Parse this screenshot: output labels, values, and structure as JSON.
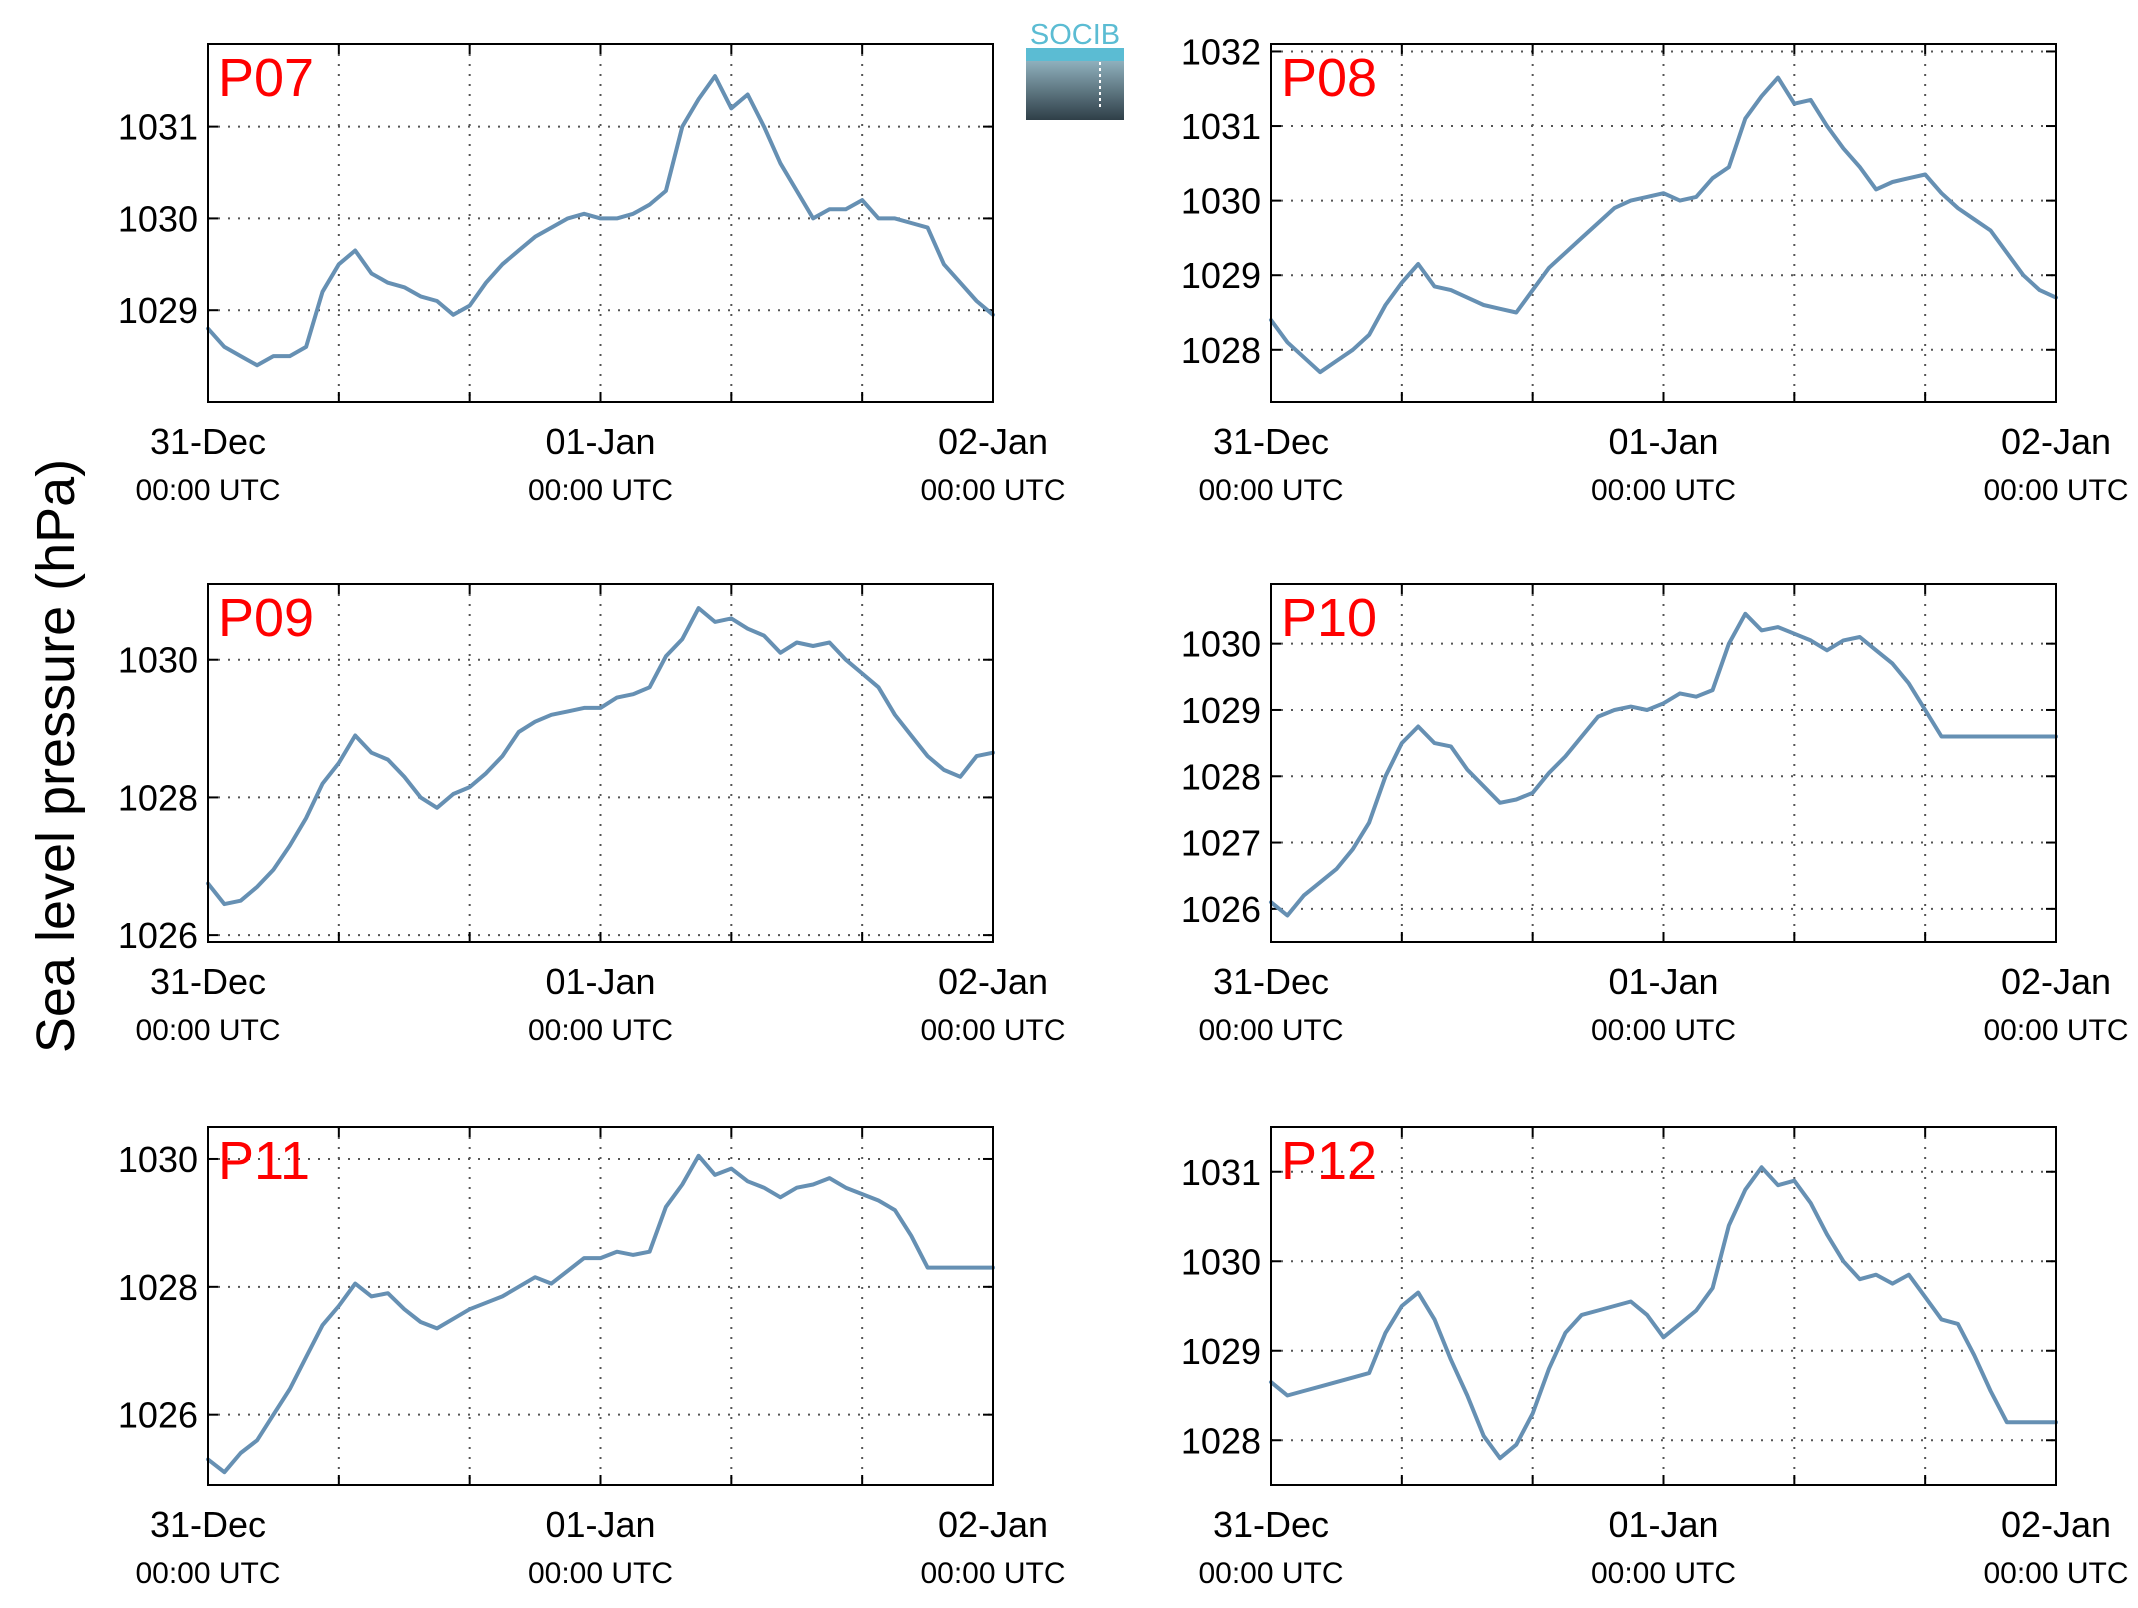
{
  "figure": {
    "ylabel": "Sea level pressure (hPa)",
    "logo_text": "SOCIB"
  },
  "colors": {
    "line": "#6690b3",
    "panel_label": "#ff0000",
    "axes": "#000000",
    "grid": "#555555",
    "logo_top": "#5bbcd3",
    "logo_bottom": "#2f3f48"
  },
  "x_ticks": [
    {
      "date": "31-Dec",
      "time": "00:00 UTC"
    },
    {
      "date": "01-Jan",
      "time": "00:00 UTC"
    },
    {
      "date": "02-Jan",
      "time": "00:00 UTC"
    }
  ],
  "chart_data": [
    {
      "type": "line",
      "label": "P07",
      "x_range": [
        "2012-12-31 00:00",
        "2013-01-02 00:00"
      ],
      "ylim": [
        1028.0,
        1031.9
      ],
      "yticks": [
        1029,
        1030,
        1031
      ],
      "grid": true,
      "x_hours": [
        0,
        1,
        2,
        3,
        4,
        5,
        6,
        7,
        8,
        9,
        10,
        11,
        12,
        13,
        14,
        15,
        16,
        17,
        18,
        19,
        20,
        21,
        22,
        23,
        24,
        25,
        26,
        27,
        28,
        29,
        30,
        31,
        32,
        33,
        34,
        35,
        36,
        37,
        38,
        39,
        40,
        41,
        42,
        43,
        44,
        45,
        46,
        47,
        48
      ],
      "values": [
        1028.8,
        1028.6,
        1028.5,
        1028.4,
        1028.5,
        1028.5,
        1028.6,
        1029.2,
        1029.5,
        1029.65,
        1029.4,
        1029.3,
        1029.25,
        1029.15,
        1029.1,
        1028.95,
        1029.05,
        1029.3,
        1029.5,
        1029.65,
        1029.8,
        1029.9,
        1030.0,
        1030.05,
        1030.0,
        1030.0,
        1030.05,
        1030.15,
        1030.3,
        1031.0,
        1031.3,
        1031.55,
        1031.2,
        1031.35,
        1031.0,
        1030.6,
        1030.3,
        1030.0,
        1030.1,
        1030.1,
        1030.2,
        1030.0,
        1030.0,
        1029.95,
        1029.9,
        1029.5,
        1029.3,
        1029.1,
        1028.95
      ]
    },
    {
      "type": "line",
      "label": "P08",
      "x_range": [
        "2012-12-31 00:00",
        "2013-01-02 00:00"
      ],
      "ylim": [
        1027.3,
        1032.1
      ],
      "yticks": [
        1028,
        1029,
        1030,
        1031,
        1032
      ],
      "grid": true,
      "x_hours": [
        0,
        1,
        2,
        3,
        4,
        5,
        6,
        7,
        8,
        9,
        10,
        11,
        12,
        13,
        14,
        15,
        16,
        17,
        18,
        19,
        20,
        21,
        22,
        23,
        24,
        25,
        26,
        27,
        28,
        29,
        30,
        31,
        32,
        33,
        34,
        35,
        36,
        37,
        38,
        39,
        40,
        41,
        42,
        43,
        44,
        45,
        46,
        47,
        48
      ],
      "values": [
        1028.4,
        1028.1,
        1027.9,
        1027.7,
        1027.85,
        1028.0,
        1028.2,
        1028.6,
        1028.9,
        1029.15,
        1028.85,
        1028.8,
        1028.7,
        1028.6,
        1028.55,
        1028.5,
        1028.8,
        1029.1,
        1029.3,
        1029.5,
        1029.7,
        1029.9,
        1030.0,
        1030.05,
        1030.1,
        1030.0,
        1030.05,
        1030.3,
        1030.45,
        1031.1,
        1031.4,
        1031.65,
        1031.3,
        1031.35,
        1031.0,
        1030.7,
        1030.45,
        1030.15,
        1030.25,
        1030.3,
        1030.35,
        1030.1,
        1029.9,
        1029.75,
        1029.6,
        1029.3,
        1029.0,
        1028.8,
        1028.7
      ]
    },
    {
      "type": "line",
      "label": "P09",
      "x_range": [
        "2012-12-31 00:00",
        "2013-01-02 00:00"
      ],
      "ylim": [
        1025.9,
        1031.1
      ],
      "yticks": [
        1026,
        1028,
        1030
      ],
      "grid": true,
      "x_hours": [
        0,
        1,
        2,
        3,
        4,
        5,
        6,
        7,
        8,
        9,
        10,
        11,
        12,
        13,
        14,
        15,
        16,
        17,
        18,
        19,
        20,
        21,
        22,
        23,
        24,
        25,
        26,
        27,
        28,
        29,
        30,
        31,
        32,
        33,
        34,
        35,
        36,
        37,
        38,
        39,
        40,
        41,
        42,
        43,
        44,
        45,
        46,
        47,
        48
      ],
      "values": [
        1026.75,
        1026.45,
        1026.5,
        1026.7,
        1026.95,
        1027.3,
        1027.7,
        1028.2,
        1028.5,
        1028.9,
        1028.65,
        1028.55,
        1028.3,
        1028.0,
        1027.85,
        1028.05,
        1028.15,
        1028.35,
        1028.6,
        1028.95,
        1029.1,
        1029.2,
        1029.25,
        1029.3,
        1029.3,
        1029.45,
        1029.5,
        1029.6,
        1030.05,
        1030.3,
        1030.75,
        1030.55,
        1030.6,
        1030.45,
        1030.35,
        1030.1,
        1030.25,
        1030.2,
        1030.25,
        1030.0,
        1029.8,
        1029.6,
        1029.2,
        1028.9,
        1028.6,
        1028.4,
        1028.3,
        1028.6,
        1028.65
      ]
    },
    {
      "type": "line",
      "label": "P10",
      "x_range": [
        "2012-12-31 00:00",
        "2013-01-02 00:00"
      ],
      "ylim": [
        1025.5,
        1030.9
      ],
      "yticks": [
        1026,
        1027,
        1028,
        1029,
        1030
      ],
      "grid": true,
      "x_hours": [
        0,
        1,
        2,
        3,
        4,
        5,
        6,
        7,
        8,
        9,
        10,
        11,
        12,
        13,
        14,
        15,
        16,
        17,
        18,
        19,
        20,
        21,
        22,
        23,
        24,
        25,
        26,
        27,
        28,
        29,
        30,
        31,
        32,
        33,
        34,
        35,
        36,
        37,
        38,
        39,
        40,
        41,
        42,
        43,
        44,
        45,
        46,
        47,
        48
      ],
      "values": [
        1026.1,
        1025.9,
        1026.2,
        1026.4,
        1026.6,
        1026.9,
        1027.3,
        1028.0,
        1028.5,
        1028.75,
        1028.5,
        1028.45,
        1028.1,
        1027.85,
        1027.6,
        1027.65,
        1027.75,
        1028.05,
        1028.3,
        1028.6,
        1028.9,
        1029.0,
        1029.05,
        1029.0,
        1029.1,
        1029.25,
        1029.2,
        1029.3,
        1030.0,
        1030.45,
        1030.2,
        1030.25,
        1030.15,
        1030.05,
        1029.9,
        1030.05,
        1030.1,
        1029.9,
        1029.7,
        1029.4,
        1029.0,
        1028.6,
        1028.6,
        1028.6,
        1028.6,
        1028.6,
        1028.6,
        1028.6,
        1028.6
      ]
    },
    {
      "type": "line",
      "label": "P11",
      "x_range": [
        "2012-12-31 00:00",
        "2013-01-02 00:00"
      ],
      "ylim": [
        1024.9,
        1030.5
      ],
      "yticks": [
        1026,
        1028,
        1030
      ],
      "grid": true,
      "x_hours": [
        0,
        1,
        2,
        3,
        4,
        5,
        6,
        7,
        8,
        9,
        10,
        11,
        12,
        13,
        14,
        15,
        16,
        17,
        18,
        19,
        20,
        21,
        22,
        23,
        24,
        25,
        26,
        27,
        28,
        29,
        30,
        31,
        32,
        33,
        34,
        35,
        36,
        37,
        38,
        39,
        40,
        41,
        42,
        43,
        44,
        45,
        46,
        47,
        48
      ],
      "values": [
        1025.3,
        1025.1,
        1025.4,
        1025.6,
        1026.0,
        1026.4,
        1026.9,
        1027.4,
        1027.7,
        1028.05,
        1027.85,
        1027.9,
        1027.65,
        1027.45,
        1027.35,
        1027.5,
        1027.65,
        1027.75,
        1027.85,
        1028.0,
        1028.15,
        1028.05,
        1028.25,
        1028.45,
        1028.45,
        1028.55,
        1028.5,
        1028.55,
        1029.25,
        1029.6,
        1030.05,
        1029.75,
        1029.85,
        1029.65,
        1029.55,
        1029.4,
        1029.55,
        1029.6,
        1029.7,
        1029.55,
        1029.45,
        1029.35,
        1029.2,
        1028.8,
        1028.3,
        1028.3,
        1028.3,
        1028.3,
        1028.3
      ]
    },
    {
      "type": "line",
      "label": "P12",
      "x_range": [
        "2012-12-31 00:00",
        "2013-01-02 00:00"
      ],
      "ylim": [
        1027.5,
        1031.5
      ],
      "yticks": [
        1028,
        1029,
        1030,
        1031
      ],
      "grid": true,
      "x_hours": [
        0,
        1,
        2,
        3,
        4,
        5,
        6,
        7,
        8,
        9,
        10,
        11,
        12,
        13,
        14,
        15,
        16,
        17,
        18,
        19,
        20,
        21,
        22,
        23,
        24,
        25,
        26,
        27,
        28,
        29,
        30,
        31,
        32,
        33,
        34,
        35,
        36,
        37,
        38,
        39,
        40,
        41,
        42,
        43,
        44,
        45,
        46,
        47,
        48
      ],
      "values": [
        1028.65,
        1028.5,
        1028.55,
        1028.6,
        1028.65,
        1028.7,
        1028.75,
        1029.2,
        1029.5,
        1029.65,
        1029.35,
        1028.9,
        1028.5,
        1028.05,
        1027.8,
        1027.95,
        1028.3,
        1028.8,
        1029.2,
        1029.4,
        1029.45,
        1029.5,
        1029.55,
        1029.4,
        1029.15,
        1029.3,
        1029.45,
        1029.7,
        1030.4,
        1030.8,
        1031.05,
        1030.85,
        1030.9,
        1030.65,
        1030.3,
        1030.0,
        1029.8,
        1029.85,
        1029.75,
        1029.85,
        1029.6,
        1029.35,
        1029.3,
        1028.95,
        1028.55,
        1028.2,
        1028.2,
        1028.2,
        1028.2
      ]
    }
  ]
}
